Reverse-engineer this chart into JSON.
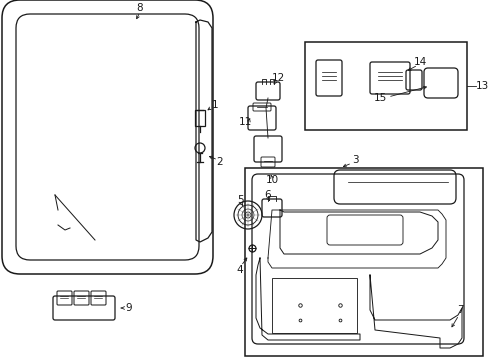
{
  "background_color": "#ffffff",
  "fig_width": 4.89,
  "fig_height": 3.6,
  "dpi": 100,
  "line_color": "#1a1a1a",
  "label_fontsize": 7.5
}
